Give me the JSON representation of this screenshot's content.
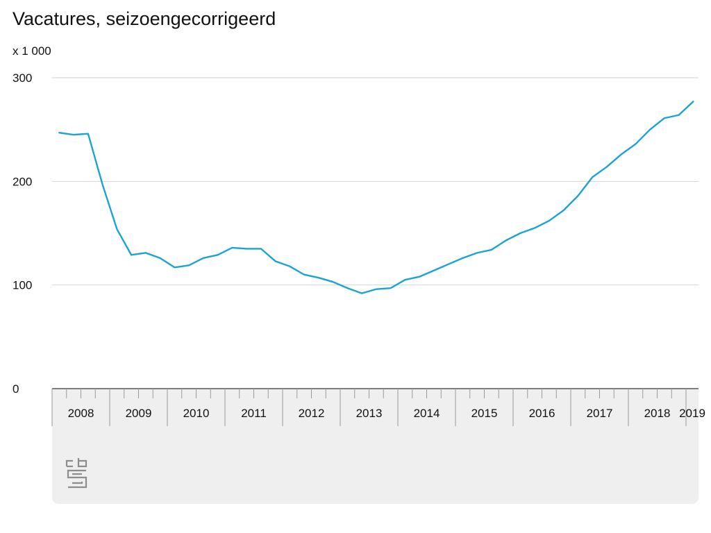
{
  "header": {
    "title": "Vacatures, seizoengecorrigeerd",
    "unit": "x 1 000"
  },
  "logo": {
    "icon": "cbs-logo-icon",
    "text": "cbs"
  },
  "colors": {
    "line": "#1aa3d4",
    "panel": "#efefef",
    "grid": "#d2d2d2"
  },
  "chart_data": {
    "type": "line",
    "title": "Vacatures, seizoengecorrigeerd",
    "ylabel": "x 1 000",
    "xlabel": "",
    "ylim": [
      0,
      300
    ],
    "yticks": [
      0,
      100,
      200,
      300
    ],
    "year_labels": [
      "2008",
      "2009",
      "2010",
      "2011",
      "2012",
      "2013",
      "2014",
      "2015",
      "2016",
      "2017",
      "2018",
      "2019"
    ],
    "x": [
      "2008 Q1",
      "2008 Q2",
      "2008 Q3",
      "2008 Q4",
      "2009 Q1",
      "2009 Q2",
      "2009 Q3",
      "2009 Q4",
      "2010 Q1",
      "2010 Q2",
      "2010 Q3",
      "2010 Q4",
      "2011 Q1",
      "2011 Q2",
      "2011 Q3",
      "2011 Q4",
      "2012 Q1",
      "2012 Q2",
      "2012 Q3",
      "2012 Q4",
      "2013 Q1",
      "2013 Q2",
      "2013 Q3",
      "2013 Q4",
      "2014 Q1",
      "2014 Q2",
      "2014 Q3",
      "2014 Q4",
      "2015 Q1",
      "2015 Q2",
      "2015 Q3",
      "2015 Q4",
      "2016 Q1",
      "2016 Q2",
      "2016 Q3",
      "2016 Q4",
      "2017 Q1",
      "2017 Q2",
      "2017 Q3",
      "2017 Q4",
      "2018 Q1",
      "2018 Q2",
      "2018 Q3",
      "2018 Q4",
      "2019 Q1"
    ],
    "series": [
      {
        "values": [
          247,
          245,
          246,
          197,
          154,
          129,
          131,
          126,
          117,
          119,
          126,
          129,
          136,
          135,
          135,
          123,
          118,
          110,
          107,
          103,
          97,
          92,
          96,
          97,
          105,
          108,
          114,
          120,
          126,
          131,
          134,
          143,
          150,
          155,
          162,
          172,
          186,
          204,
          214,
          226,
          236,
          250,
          261,
          264,
          277
        ]
      }
    ],
    "grid": true,
    "legend": "none"
  }
}
